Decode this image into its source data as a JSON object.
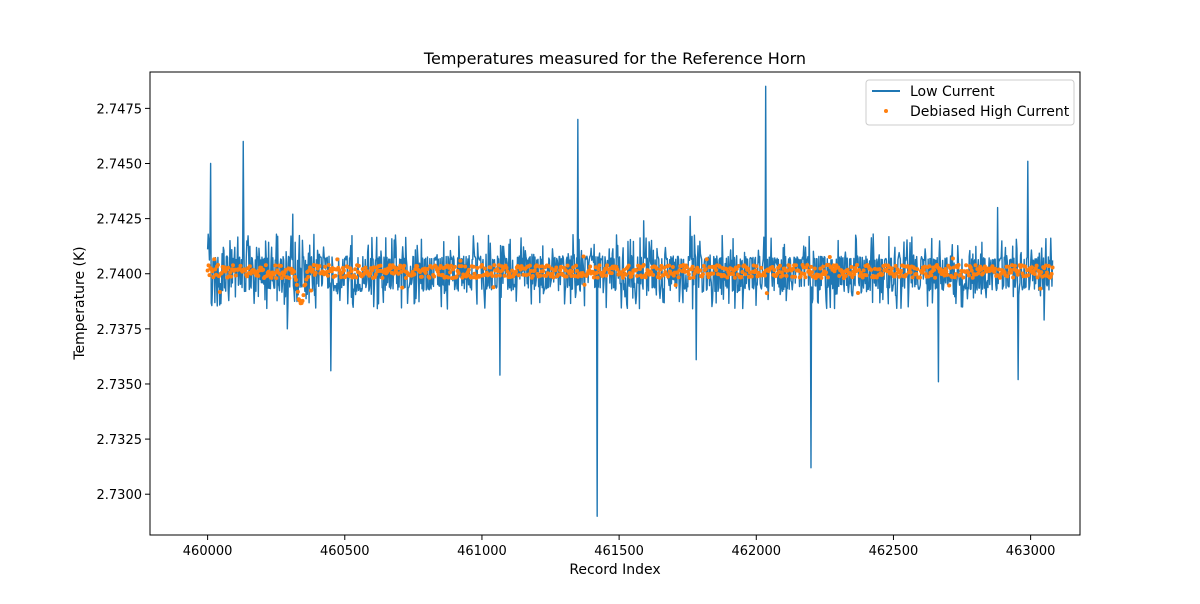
{
  "chart_data": {
    "type": "line",
    "title": "Temperatures measured for the Reference Horn",
    "xlabel": "Record Index",
    "ylabel": "Temperature (K)",
    "xlim": [
      459790,
      463180
    ],
    "ylim": [
      2.72815,
      2.74915
    ],
    "x_ticks": [
      {
        "value": 460000,
        "label": "460000"
      },
      {
        "value": 460500,
        "label": "460500"
      },
      {
        "value": 461000,
        "label": "461000"
      },
      {
        "value": 461500,
        "label": "461500"
      },
      {
        "value": 462000,
        "label": "462000"
      },
      {
        "value": 462500,
        "label": "462500"
      },
      {
        "value": 463000,
        "label": "463000"
      }
    ],
    "y_ticks": [
      {
        "value": 2.73,
        "label": "2.7300"
      },
      {
        "value": 2.7325,
        "label": "2.7325"
      },
      {
        "value": 2.735,
        "label": "2.7350"
      },
      {
        "value": 2.7375,
        "label": "2.7375"
      },
      {
        "value": 2.74,
        "label": "2.7400"
      },
      {
        "value": 2.7425,
        "label": "2.7425"
      },
      {
        "value": 2.745,
        "label": "2.7450"
      },
      {
        "value": 2.7475,
        "label": "2.7475"
      }
    ],
    "grid": false,
    "legend_position": "top-right",
    "series": [
      {
        "name": "Low Current",
        "type": "line",
        "color": "#1f77b4",
        "x_start": 460000,
        "x_end": 463080,
        "noise_band": [
          2.7392,
          2.7408
        ],
        "baseline": 2.74,
        "spikes": [
          {
            "x": 460010,
            "y": 2.745
          },
          {
            "x": 460130,
            "y": 2.746
          },
          {
            "x": 460310,
            "y": 2.7427
          },
          {
            "x": 460290,
            "y": 2.7375
          },
          {
            "x": 460450,
            "y": 2.7356
          },
          {
            "x": 460640,
            "y": 2.7387
          },
          {
            "x": 461065,
            "y": 2.7354
          },
          {
            "x": 461350,
            "y": 2.747
          },
          {
            "x": 461420,
            "y": 2.729
          },
          {
            "x": 461590,
            "y": 2.7424
          },
          {
            "x": 461760,
            "y": 2.7426
          },
          {
            "x": 461780,
            "y": 2.7361
          },
          {
            "x": 462035,
            "y": 2.7485
          },
          {
            "x": 462200,
            "y": 2.7312
          },
          {
            "x": 462665,
            "y": 2.7351
          },
          {
            "x": 462880,
            "y": 2.743
          },
          {
            "x": 462955,
            "y": 2.7352
          },
          {
            "x": 462990,
            "y": 2.7451
          },
          {
            "x": 463050,
            "y": 2.7379
          }
        ]
      },
      {
        "name": "Debiased High Current",
        "type": "scatter",
        "color": "#ff7f0e",
        "x_start": 460000,
        "x_end": 463080,
        "baseline": 2.7401,
        "dip": {
          "x": 460340,
          "y": 2.7385
        }
      }
    ]
  }
}
